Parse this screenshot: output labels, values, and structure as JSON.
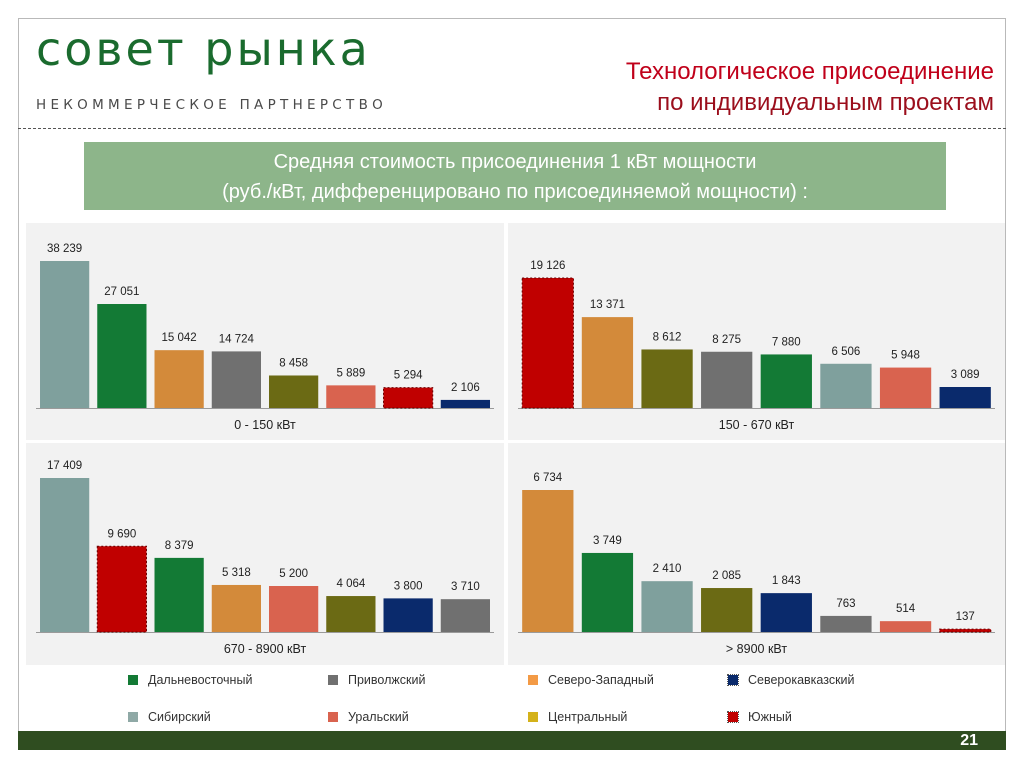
{
  "header": {
    "logo_main": "совет рынка",
    "logo_sub": "НЕКОММЕРЧЕСКОЕ ПАРТНЕРСТВО",
    "title_line1": "Технологическое присоединение",
    "title_line2": "по индивидуальным проектам"
  },
  "subtitle": {
    "line1": "Средняя стоимость присоединения 1 кВт мощности",
    "line2": "(руб./кВт, дифференцировано по присоединяемой мощности) :"
  },
  "colors": {
    "Дальневосточный": "#137a35",
    "Приволжский": "#707070",
    "Северо-Западный": "#d38a3a",
    "Северокавказский": "#0a2a6c",
    "Сибирский": "#7fa09d",
    "Уральский": "#d9634f",
    "Центральный": "#6b6a14",
    "Южный": "#c00000"
  },
  "legend": {
    "items": [
      {
        "label": "Дальневосточный",
        "color": "#137a35"
      },
      {
        "label": "Приволжский",
        "color": "#707070"
      },
      {
        "label": "Северо-Западный",
        "color": "#f39a45"
      },
      {
        "label": "Северокавказский",
        "color": "#0a2a6c"
      },
      {
        "label": "Сибирский",
        "color": "#8fa9a6"
      },
      {
        "label": "Уральский",
        "color": "#d9634f"
      },
      {
        "label": "Центральный",
        "color": "#d4b21a"
      },
      {
        "label": "Южный",
        "color": "#c00000"
      }
    ]
  },
  "chart_data": [
    {
      "type": "bar",
      "xlabel": "0 - 150 кВт",
      "values": [
        38239,
        27051,
        15042,
        14724,
        8458,
        5889,
        5294,
        2106
      ],
      "labels": [
        "38 239",
        "27 051",
        "15 042",
        "14 724",
        "8 458",
        "5 889",
        "5 294",
        "2 106"
      ],
      "regions": [
        "Сибирский",
        "Дальневосточный",
        "Северо-Западный",
        "Приволжский",
        "Центральный",
        "Уральский",
        "Южный",
        "Северокавказский"
      ],
      "ymax": 38239
    },
    {
      "type": "bar",
      "xlabel": "150  - 670 кВт",
      "values": [
        19126,
        13371,
        8612,
        8275,
        7880,
        6506,
        5948,
        3089
      ],
      "labels": [
        "19 126",
        "13 371",
        "8 612",
        "8 275",
        "7 880",
        "6 506",
        "5 948",
        "3 089"
      ],
      "regions": [
        "Южный",
        "Северо-Западный",
        "Центральный",
        "Приволжский",
        "Дальневосточный",
        "Сибирский",
        "Уральский",
        "Северокавказский"
      ],
      "ymax": 19126
    },
    {
      "type": "bar",
      "xlabel": "670 - 8900 кВт",
      "values": [
        17409,
        9690,
        8379,
        5318,
        5200,
        4064,
        3800,
        3710
      ],
      "labels": [
        "17 409",
        "9 690",
        "8 379",
        "5 318",
        "5 200",
        "4 064",
        "3 800",
        "3 710"
      ],
      "regions": [
        "Сибирский",
        "Южный",
        "Дальневосточный",
        "Северо-Западный",
        "Уральский",
        "Центральный",
        "Северокавказский",
        "Приволжский"
      ],
      "ymax": 17409
    },
    {
      "type": "bar",
      "xlabel": "> 8900 кВт",
      "values": [
        6734,
        3749,
        2410,
        2085,
        1843,
        763,
        514,
        137
      ],
      "labels": [
        "6 734",
        "3 749",
        "2 410",
        "2 085",
        "1 843",
        "763",
        "514",
        "137"
      ],
      "regions": [
        "Северо-Западный",
        "Дальневосточный",
        "Сибирский",
        "Центральный",
        "Северокавказский",
        "Приволжский",
        "Уральский",
        "Южный"
      ],
      "ymax": 6734
    }
  ],
  "footer": {
    "page_number": "21"
  }
}
